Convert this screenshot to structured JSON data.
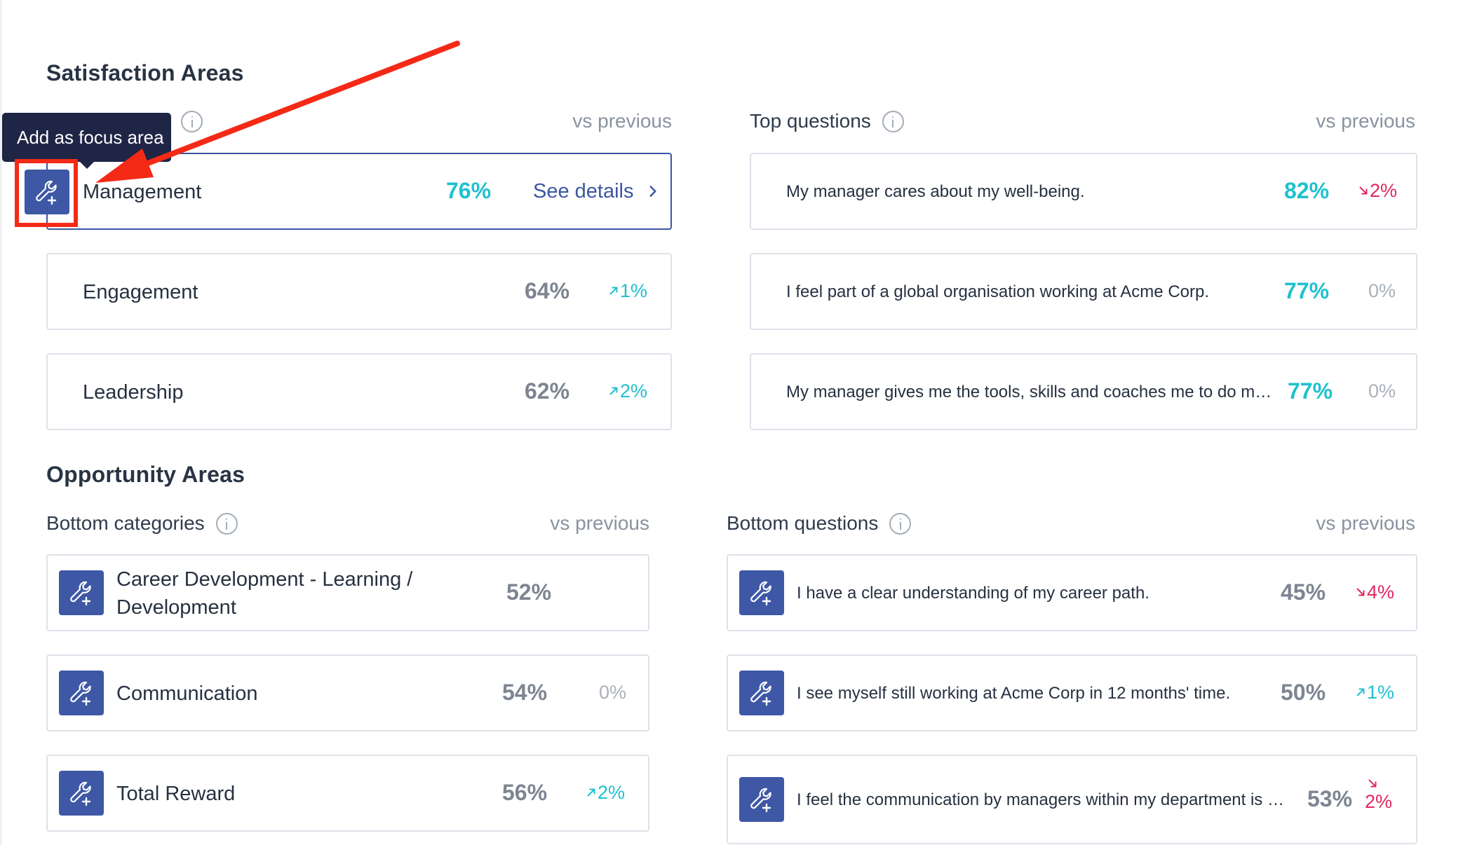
{
  "satisfaction": {
    "title": "Satisfaction Areas",
    "vs_previous": "vs previous",
    "categories": [
      {
        "name": "Management",
        "pct": "76%",
        "link": "See details",
        "active": true
      },
      {
        "name": "Engagement",
        "pct": "64%",
        "delta": "1%",
        "trend": "up"
      },
      {
        "name": "Leadership",
        "pct": "62%",
        "delta": "2%",
        "trend": "up"
      }
    ],
    "top_questions_label": "Top questions",
    "top_questions": [
      {
        "text": "My manager cares about my well-being.",
        "pct": "82%",
        "delta": "2%",
        "trend": "down"
      },
      {
        "text": "I feel part of a global organisation working at Acme Corp.",
        "pct": "77%",
        "delta": "0%",
        "trend": "flat"
      },
      {
        "text": "My manager gives me the tools, skills and coaches me to do my jo...",
        "pct": "77%",
        "delta": "0%",
        "trend": "flat"
      }
    ]
  },
  "tooltip": {
    "text": "Add as focus area"
  },
  "opportunity": {
    "title": "Opportunity Areas",
    "bottom_categories_label": "Bottom categories",
    "vs_previous": "vs previous",
    "categories": [
      {
        "name_line1": "Career Development - Learning /",
        "name_line2": "Development",
        "pct": "52%"
      },
      {
        "name": "Communication",
        "pct": "54%",
        "delta": "0%",
        "trend": "flat"
      },
      {
        "name": "Total Reward",
        "pct": "56%",
        "delta": "2%",
        "trend": "up"
      }
    ],
    "bottom_questions_label": "Bottom questions",
    "questions": [
      {
        "text": "I have a clear understanding of my career path.",
        "pct": "45%",
        "delta": "4%",
        "trend": "down"
      },
      {
        "text": "I see myself still working at Acme Corp in 12 months' time.",
        "pct": "50%",
        "delta": "1%",
        "trend": "up"
      },
      {
        "text": "I feel the communication by managers within my department is ali...",
        "pct": "53%",
        "delta": "2%",
        "trend": "down"
      }
    ]
  },
  "icons": {
    "focus": "wrench-plus-icon",
    "info": "info-icon",
    "chevron": "chevron-right-icon",
    "trend_up": "arrow-up-right-icon",
    "trend_down": "arrow-down-right-icon"
  },
  "colors": {
    "accent": "#3e58a6",
    "teal": "#1fc1cf",
    "red": "#e0275f",
    "annotation": "#f42a16",
    "tooltip_bg": "#1e2545"
  }
}
